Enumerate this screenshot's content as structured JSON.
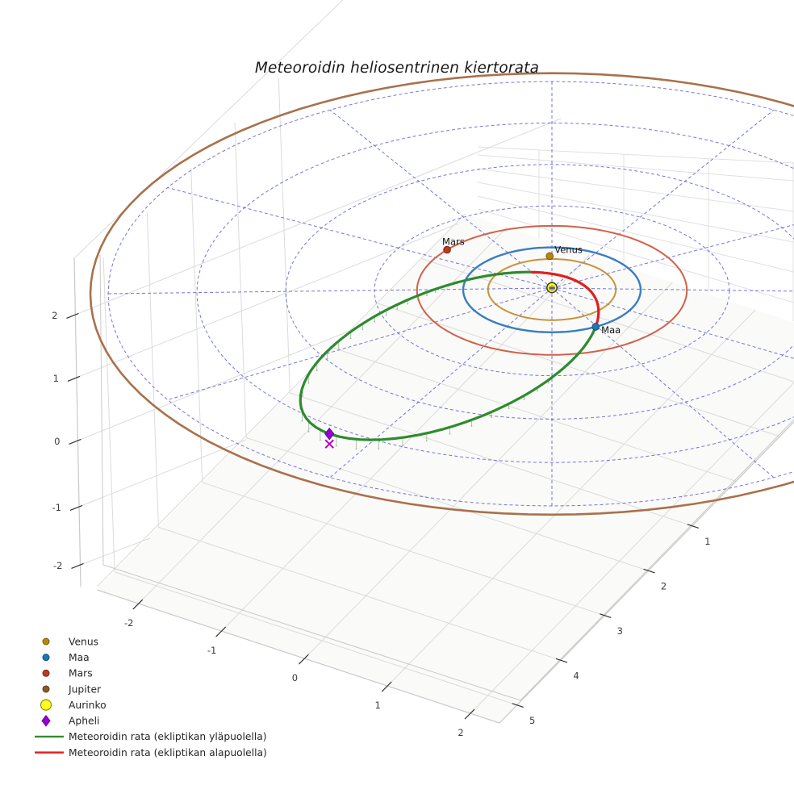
{
  "title": "Meteoroidin heliosentrinen kiertorata",
  "chart_data": {
    "type": "line",
    "title": "Meteoroidin heliosentrinen kiertorata",
    "description": "3D heliocentric orbit plot of a meteoroid with planet orbits, ecliptic polar grid and 3D axis panes",
    "axes": {
      "x": {
        "ticks": [
          -2,
          -1,
          0,
          1,
          2
        ]
      },
      "y": {
        "ticks": [
          1,
          2,
          3,
          4,
          5
        ]
      },
      "z": {
        "ticks": [
          2,
          1,
          0,
          -1,
          -2
        ]
      }
    },
    "sun": {
      "name": "Aurinko",
      "color": "#ffff22",
      "edge": "#3c3c00"
    },
    "planets": [
      {
        "name": "Venus",
        "orbit_radius_au": 0.72,
        "orbit_color": "#c8923c",
        "marker_color": "#b8860b",
        "edge": "#7a5808",
        "marker_angle_deg": 268,
        "marker_z_au": 0.05,
        "labeled": true
      },
      {
        "name": "Maa",
        "orbit_radius_au": 1.0,
        "orbit_color": "#3a7cc1",
        "marker_color": "#1f77b4",
        "edge": "#11507c",
        "marker_angle_deg": 60.5,
        "marker_z_au": 0,
        "labeled": true
      },
      {
        "name": "Mars",
        "orbit_radius_au": 1.52,
        "orbit_color": "#d2604a",
        "marker_color": "#bf3a1e",
        "edge": "#7a2414",
        "marker_angle_deg": 219,
        "marker_z_au": 0,
        "labeled": true
      },
      {
        "name": "Jupiter",
        "orbit_radius_au": 5.2,
        "orbit_color": "#a9714b",
        "marker_color": "#8b5a2b",
        "edge": "#5e3a1e",
        "marker_angle_deg": null,
        "marker_z_au": 0,
        "labeled": false
      }
    ],
    "meteoroid": {
      "semilatus_au": 0.635,
      "eccentricity": 0.854,
      "perihelion_au": 0.34,
      "aphelion_au": 4.36,
      "perihelion_angle_deg": -54.8,
      "ascending_node_angle_deg": 60.5,
      "inclination_sin": 0.0435,
      "above_color": "#2e8b2e",
      "below_color": "#e01f1f",
      "stem_color": "#9db89d",
      "above_label": "Meteoroidin rata (ekliptikan yläpuolella)",
      "below_label": "Meteoroidin rata (ekliptikan alapuolella)"
    },
    "aphelion_marker": {
      "name": "Apheli",
      "color": "#9400d3",
      "edge": "#6a0098"
    },
    "ecliptic_projection_marker": {
      "shape": "x",
      "color": "#bf00bf"
    },
    "polar_grid": {
      "circle_radii_au": [
        1,
        2,
        3,
        4,
        5
      ],
      "spoke_step_deg": 30,
      "color": "#4040cf"
    },
    "legend": [
      {
        "label": "Venus",
        "marker": "dot",
        "color": "#b8860b",
        "edge": "#7a5808"
      },
      {
        "label": "Maa",
        "marker": "dot",
        "color": "#1f77b4",
        "edge": "#11507c"
      },
      {
        "label": "Mars",
        "marker": "dot",
        "color": "#bf3a1e",
        "edge": "#7a2414"
      },
      {
        "label": "Jupiter",
        "marker": "dot",
        "color": "#8b5a2b",
        "edge": "#5e3a1e"
      },
      {
        "label": "Aurinko",
        "marker": "circle",
        "color": "#ffff22",
        "edge": "#8f8f00"
      },
      {
        "label": "Apheli",
        "marker": "diamond",
        "color": "#9400d3",
        "edge": "#6a0098"
      },
      {
        "label": "Meteoroidin rata (ekliptikan yläpuolella)",
        "marker": "line",
        "color": "#2e8b2e",
        "edge": "#2e8b2e"
      },
      {
        "label": "Meteoroidin rata (ekliptikan alapuolella)",
        "marker": "line",
        "color": "#e01f1f",
        "edge": "#e01f1f"
      }
    ]
  }
}
